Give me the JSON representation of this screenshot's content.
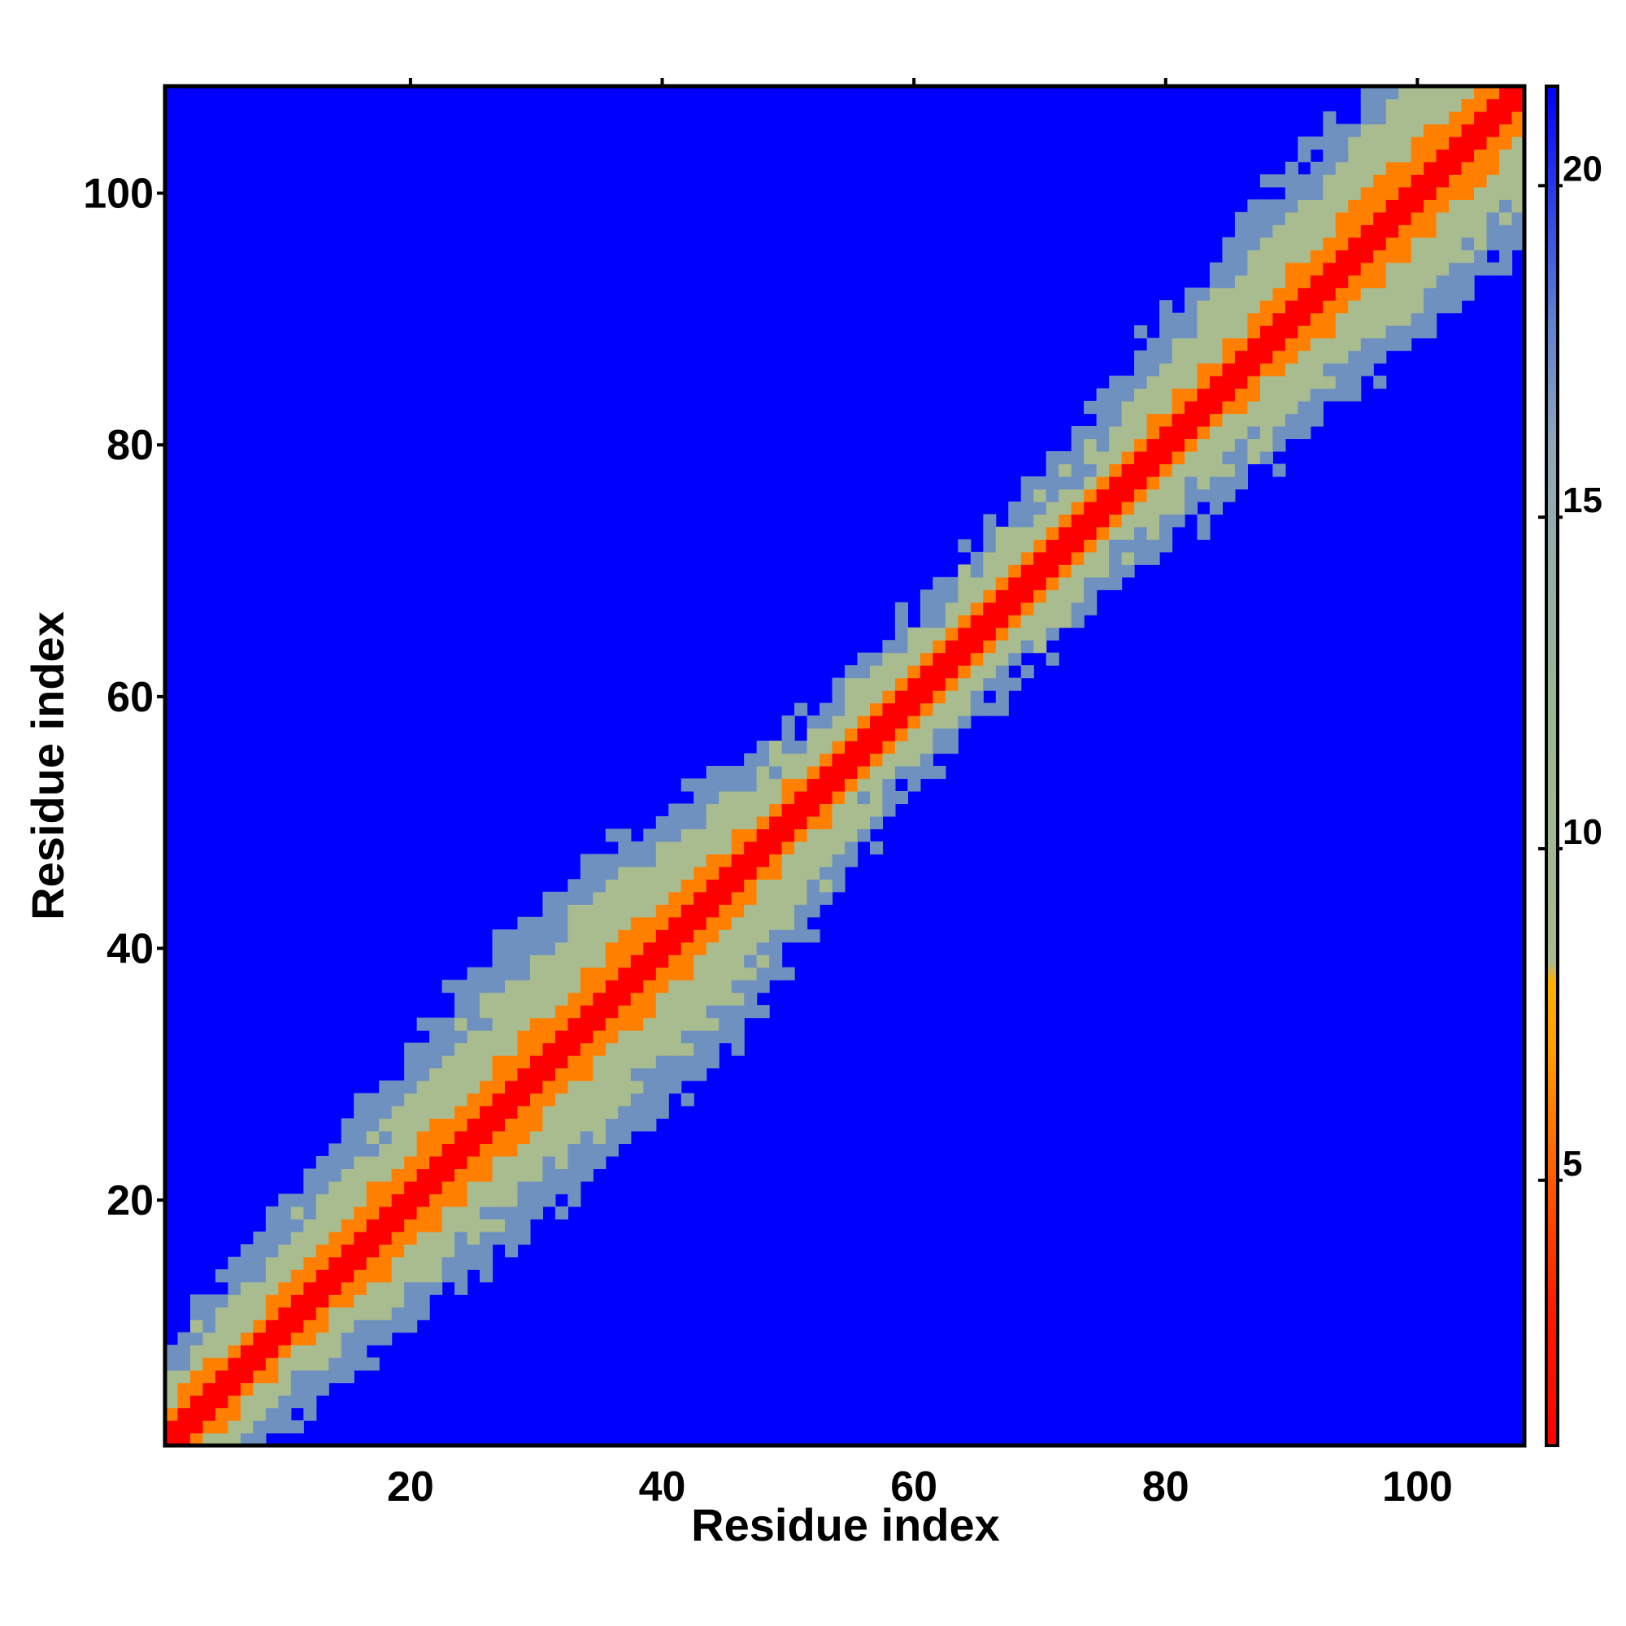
{
  "chart_data": {
    "type": "heatmap",
    "title": "",
    "xlabel": "Residue index",
    "ylabel": "Residue index",
    "xlim": [
      1,
      108
    ],
    "ylim": [
      1,
      108
    ],
    "x_ticks": [
      20,
      40,
      60,
      80,
      100
    ],
    "y_ticks": [
      20,
      40,
      60,
      80,
      100
    ],
    "colorbar": {
      "range": [
        1,
        21.5
      ],
      "ticks": [
        5,
        10,
        15,
        20
      ],
      "stops": [
        {
          "value": 1,
          "color": "#ff0000"
        },
        {
          "value": 3,
          "color": "#ff1800"
        },
        {
          "value": 5,
          "color": "#ff5a00"
        },
        {
          "value": 7,
          "color": "#ffa000"
        },
        {
          "value": 8,
          "color": "#ffb000"
        },
        {
          "value": 8.3,
          "color": "#a8b890"
        },
        {
          "value": 12,
          "color": "#98b890"
        },
        {
          "value": 16,
          "color": "#8fa8b8"
        },
        {
          "value": 18,
          "color": "#5f7fcf"
        },
        {
          "value": 21.5,
          "color": "#0000ff"
        }
      ]
    },
    "cell_colors": {
      "core": "#ff0000",
      "near": "#ff8000",
      "mid": "#a8bc8f",
      "far": "#6f91bf",
      "background": "#0000ff"
    },
    "matrix_description_values": {
      "diagonal_distance": 0,
      "contact_cutoff_range": [
        1,
        21.5
      ]
    },
    "band_half_width": [
      {
        "residue": 1,
        "core": 1.5,
        "near": 3,
        "mid": 5,
        "far": 8
      },
      {
        "residue": 10,
        "core": 1.5,
        "near": 3,
        "mid": 6,
        "far": 9
      },
      {
        "residue": 20,
        "core": 1.5,
        "near": 4,
        "mid": 8,
        "far": 11
      },
      {
        "residue": 30,
        "core": 1.5,
        "near": 4,
        "mid": 9,
        "far": 13
      },
      {
        "residue": 40,
        "core": 1.5,
        "near": 4,
        "mid": 9,
        "far": 13
      },
      {
        "residue": 48,
        "core": 1.5,
        "near": 3,
        "mid": 7,
        "far": 10
      },
      {
        "residue": 55,
        "core": 1.5,
        "near": 2.5,
        "mid": 5,
        "far": 7
      },
      {
        "residue": 65,
        "core": 1.5,
        "near": 2.5,
        "mid": 5,
        "far": 7
      },
      {
        "residue": 75,
        "core": 1.5,
        "near": 2.5,
        "mid": 5,
        "far": 8
      },
      {
        "residue": 85,
        "core": 1.5,
        "near": 3,
        "mid": 7,
        "far": 10
      },
      {
        "residue": 95,
        "core": 1.5,
        "near": 4,
        "mid": 9,
        "far": 12
      },
      {
        "residue": 108,
        "core": 1.5,
        "near": 4,
        "mid": 9,
        "far": 12
      }
    ]
  }
}
